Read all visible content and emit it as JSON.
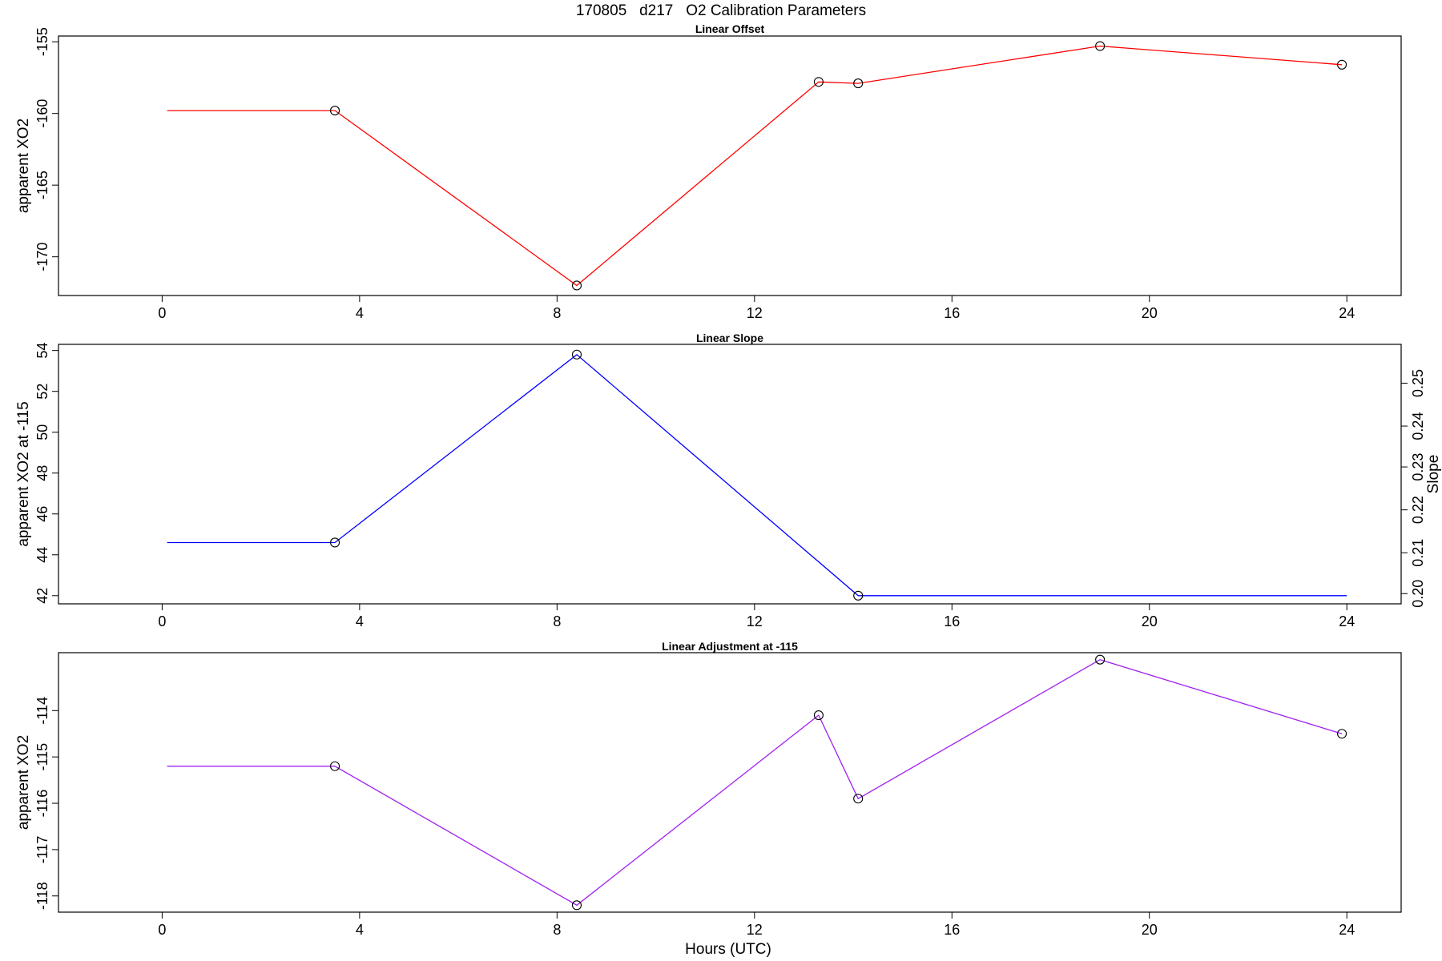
{
  "figure": {
    "title": "170805   d217   O2 Calibration Parameters",
    "xlabel": "Hours (UTC)"
  },
  "chart_data": [
    {
      "type": "line",
      "title": "Linear Offset",
      "xlabel": "",
      "ylabel": "apparent XO2",
      "xlim": [
        -2.1,
        25.1
      ],
      "ylim": [
        -172.7,
        -154.6
      ],
      "xticks": [
        0,
        4,
        8,
        12,
        16,
        20,
        24
      ],
      "yticks": [
        -155,
        -160,
        -165,
        -170
      ],
      "color": "#ff0000",
      "grid": false,
      "series": [
        {
          "x": [
            0.1,
            3.5,
            8.4,
            13.3,
            14.1,
            19.0,
            23.9
          ],
          "y": [
            -159.8,
            -159.8,
            -172.0,
            -157.8,
            -157.9,
            -155.3,
            -156.6
          ],
          "markers": [
            false,
            true,
            true,
            true,
            true,
            true,
            true
          ]
        }
      ]
    },
    {
      "type": "line",
      "title": "Linear Slope",
      "xlabel": "",
      "ylabel": "apparent XO2 at -115",
      "ylabel_right": "Slope",
      "xlim": [
        -2.1,
        25.1
      ],
      "ylim": [
        41.6,
        54.3
      ],
      "xticks": [
        0,
        4,
        8,
        12,
        16,
        20,
        24
      ],
      "yticks": [
        42,
        44,
        46,
        48,
        50,
        52,
        54
      ],
      "right_axis": {
        "ticks": [
          0.2,
          0.21,
          0.22,
          0.23,
          0.24,
          0.25
        ],
        "tick_labels": [
          "0.20",
          "0.21",
          "0.22",
          "0.23",
          "0.24",
          "0.25"
        ],
        "y_equivalents": [
          42.1,
          44.1,
          46.2,
          48.3,
          50.3,
          52.4
        ]
      },
      "color": "#0000ff",
      "grid": false,
      "series": [
        {
          "x": [
            0.1,
            3.5,
            8.4,
            14.1,
            24.0
          ],
          "y": [
            44.6,
            44.6,
            53.8,
            42.0,
            42.0
          ],
          "markers": [
            false,
            true,
            true,
            true,
            false
          ]
        }
      ]
    },
    {
      "type": "line",
      "title": "Linear Adjustment at -115",
      "xlabel": "Hours (UTC)",
      "ylabel": "apparent XO2",
      "xlim": [
        -2.1,
        25.1
      ],
      "ylim": [
        -118.35,
        -112.75
      ],
      "xticks": [
        0,
        4,
        8,
        12,
        16,
        20,
        24
      ],
      "yticks": [
        -114,
        -115,
        -116,
        -117,
        -118
      ],
      "color": "#a020f0",
      "grid": false,
      "series": [
        {
          "x": [
            0.1,
            3.5,
            8.4,
            13.3,
            14.1,
            19.0,
            23.9
          ],
          "y": [
            -115.2,
            -115.2,
            -118.2,
            -114.1,
            -115.9,
            -112.9,
            -114.5
          ],
          "markers": [
            false,
            true,
            true,
            true,
            true,
            true,
            true
          ]
        }
      ]
    }
  ]
}
